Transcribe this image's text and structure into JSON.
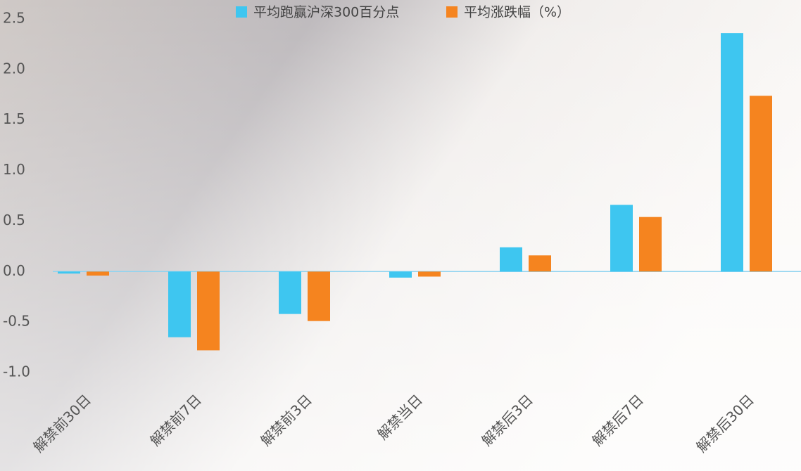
{
  "chart_data": {
    "type": "bar",
    "categories": [
      "解禁前30日",
      "解禁前7日",
      "解禁前3日",
      "解禁当日",
      "解禁后3日",
      "解禁后7日",
      "解禁后30日"
    ],
    "series": [
      {
        "name": "平均跑赢沪深300百分点",
        "color": "#3ec6f0",
        "values": [
          -0.02,
          -0.65,
          -0.42,
          -0.06,
          0.24,
          0.66,
          2.36
        ]
      },
      {
        "name": "平均涨跌幅（%）",
        "color": "#f5841f",
        "values": [
          -0.04,
          -0.78,
          -0.49,
          -0.05,
          0.16,
          0.54,
          1.74
        ]
      }
    ],
    "ylim": [
      -1.0,
      2.5
    ],
    "yticks": [
      {
        "value": -1.0,
        "label": "-1.0"
      },
      -0.5,
      {
        "value": 0,
        "label": "0.0"
      },
      0.5,
      {
        "value": 1.0,
        "label": "1.0"
      },
      1.5,
      {
        "value": 2.0,
        "label": "2.0"
      },
      2.5
    ],
    "grid": false
  }
}
